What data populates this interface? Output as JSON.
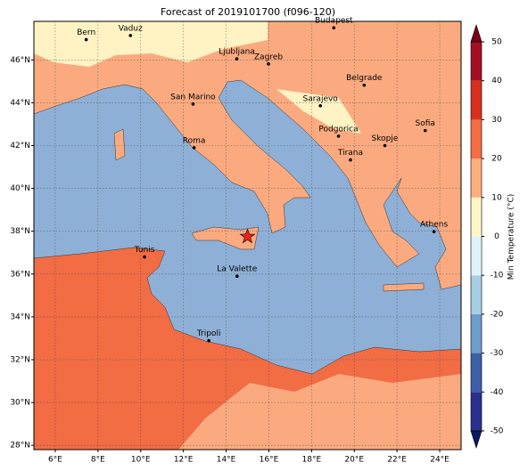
{
  "map": {
    "title": "Forecast of 2019101700 (f096-120)",
    "xlim": [
      5,
      25
    ],
    "ylim": [
      27.8,
      47.8
    ],
    "xticks": [
      {
        "value": 6,
        "label": "6°E"
      },
      {
        "value": 8,
        "label": "8°E"
      },
      {
        "value": 10,
        "label": "10°E"
      },
      {
        "value": 12,
        "label": "12°E"
      },
      {
        "value": 14,
        "label": "14°E"
      },
      {
        "value": 16,
        "label": "16°E"
      },
      {
        "value": 18,
        "label": "18°E"
      },
      {
        "value": 20,
        "label": "20°E"
      },
      {
        "value": 22,
        "label": "22°E"
      },
      {
        "value": 24,
        "label": "24°E"
      }
    ],
    "yticks": [
      {
        "value": 28,
        "label": "28°N"
      },
      {
        "value": 30,
        "label": "30°N"
      },
      {
        "value": 32,
        "label": "32°N"
      },
      {
        "value": 34,
        "label": "34°N"
      },
      {
        "value": 36,
        "label": "36°N"
      },
      {
        "value": 38,
        "label": "38°N"
      },
      {
        "value": 40,
        "label": "40°N"
      },
      {
        "value": 42,
        "label": "42°N"
      },
      {
        "value": 44,
        "label": "44°N"
      },
      {
        "value": 46,
        "label": "46°N"
      }
    ],
    "grid": true,
    "cities": [
      {
        "name": "Bern",
        "lon": 7.45,
        "lat": 46.95
      },
      {
        "name": "Vaduz",
        "lon": 9.52,
        "lat": 47.14
      },
      {
        "name": "Budapest",
        "lon": 19.04,
        "lat": 47.5
      },
      {
        "name": "Ljubljana",
        "lon": 14.5,
        "lat": 46.05
      },
      {
        "name": "Zagreb",
        "lon": 15.98,
        "lat": 45.81
      },
      {
        "name": "Belgrade",
        "lon": 20.46,
        "lat": 44.82
      },
      {
        "name": "Sarajevo",
        "lon": 18.41,
        "lat": 43.86
      },
      {
        "name": "San Marino",
        "lon": 12.45,
        "lat": 43.94
      },
      {
        "name": "Sofia",
        "lon": 23.32,
        "lat": 42.7
      },
      {
        "name": "Podgorica",
        "lon": 19.26,
        "lat": 42.44
      },
      {
        "name": "Skopje",
        "lon": 21.43,
        "lat": 42.0
      },
      {
        "name": "Roma",
        "lon": 12.5,
        "lat": 41.9
      },
      {
        "name": "Tirana",
        "lon": 19.82,
        "lat": 41.33
      },
      {
        "name": "Athens",
        "lon": 23.73,
        "lat": 37.98
      },
      {
        "name": "Tunis",
        "lon": 10.18,
        "lat": 36.8
      },
      {
        "name": "La Valette",
        "lon": 14.51,
        "lat": 35.9
      },
      {
        "name": "Tripoli",
        "lon": 13.19,
        "lat": 32.89
      }
    ],
    "star": {
      "lon": 15.0,
      "lat": 37.75,
      "color": "#e8261c"
    },
    "colorbar": {
      "label": "Min Temperature (°C)",
      "lim": [
        -50,
        50
      ],
      "ticks": [
        -50,
        -40,
        -30,
        -20,
        -10,
        0,
        10,
        20,
        30,
        40,
        50
      ],
      "colors": [
        "#2b2f8f",
        "#3d5fa8",
        "#6e9ccb",
        "#a7cfe4",
        "#e0f3f8",
        "#fff6c6",
        "#fdb07f",
        "#f46d43",
        "#d7301f",
        "#a50f24"
      ],
      "extend_colors": [
        "#0b1a5e",
        "#7a0019"
      ]
    }
  }
}
